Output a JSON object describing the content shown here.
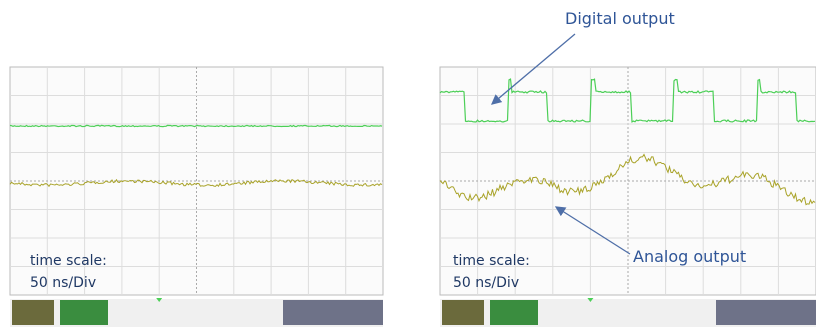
{
  "annotations": {
    "digital": "Digital output",
    "analog": "Analog output"
  },
  "panels": [
    {
      "time_label": "time scale:",
      "scale_label": "50 ns/Div"
    },
    {
      "time_label": "time scale:",
      "scale_label": "50 ns/Div"
    }
  ]
}
